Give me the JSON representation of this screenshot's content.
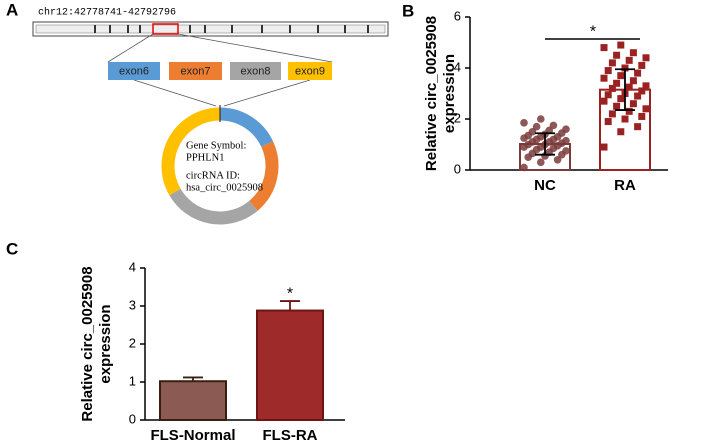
{
  "diagram": {
    "panel_label": "A",
    "locus": "chr12:42778741-42792796",
    "exons": [
      {
        "label": "exon6",
        "color": "#5b9bd5"
      },
      {
        "label": "exon7",
        "color": "#ed7d31"
      },
      {
        "label": "exon8",
        "color": "#a5a5a5"
      },
      {
        "label": "exon9",
        "color": "#ffc000"
      }
    ],
    "gene_symbol_label": "Gene Symbol:",
    "gene_symbol": "PPHLN1",
    "circrna_id_label": "circRNA ID:",
    "circrna_id": "hsa_circ_0025908"
  },
  "chart_data": [
    {
      "type": "bar",
      "panel_label": "B",
      "ylabel": [
        "Relative circ_0025908",
        "expression"
      ],
      "categories": [
        "NC",
        "RA"
      ],
      "values": [
        1.02,
        3.15
      ],
      "errors": [
        0.42,
        0.8
      ],
      "colors": [
        "#7a3b3b",
        "#9b2222"
      ],
      "fill": "#ffffff",
      "markers": [
        "circle",
        "square"
      ],
      "points": [
        [
          0.1,
          0.3,
          0.4,
          0.5,
          0.55,
          0.6,
          0.65,
          0.7,
          0.75,
          0.8,
          0.85,
          0.9,
          0.9,
          0.95,
          1.0,
          1.0,
          1.05,
          1.1,
          1.1,
          1.15,
          1.2,
          1.2,
          1.25,
          1.3,
          1.3,
          1.35,
          1.4,
          1.45,
          1.5,
          1.55,
          1.6,
          1.7,
          1.75,
          1.85,
          2.0
        ],
        [
          0.9,
          1.5,
          1.7,
          1.9,
          2.0,
          2.1,
          2.2,
          2.3,
          2.4,
          2.5,
          2.6,
          2.7,
          2.8,
          2.9,
          2.95,
          3.0,
          3.1,
          3.2,
          3.25,
          3.3,
          3.4,
          3.5,
          3.6,
          3.7,
          3.8,
          3.9,
          4.0,
          4.1,
          4.2,
          4.3,
          4.4,
          4.5,
          4.6,
          4.8,
          4.9
        ]
      ],
      "ylim": [
        0,
        6
      ],
      "yticks": [
        0,
        2,
        4,
        6
      ],
      "significance": "*",
      "significance_bracket": true
    },
    {
      "type": "bar",
      "panel_label": "C",
      "ylabel": [
        "Relative circ_0025908",
        "expression"
      ],
      "categories": [
        "FLS-Normal",
        "FLS-RA"
      ],
      "values": [
        1.02,
        2.88
      ],
      "errors": [
        0.1,
        0.25
      ],
      "colors": [
        "#3a1e12",
        "#6e1414"
      ],
      "fills": [
        "#8b5a52",
        "#9e2a2a"
      ],
      "ylim": [
        0,
        4
      ],
      "yticks": [
        0,
        1,
        2,
        3,
        4
      ],
      "significance": "*",
      "significance_bracket": false
    }
  ]
}
